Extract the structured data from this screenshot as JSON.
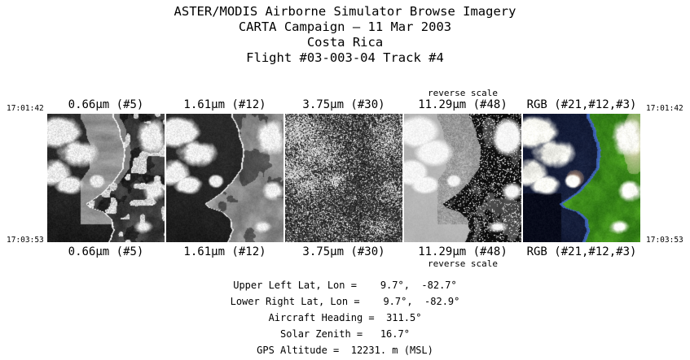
{
  "title": {
    "lines": [
      "ASTER/MODIS Airborne Simulator Browse Imagery",
      "CARTA Campaign — 11 Mar 2003",
      "Costa Rica",
      "Flight #03-003-04 Track #4"
    ]
  },
  "times": {
    "start": "17:01:42",
    "end": "17:03:53"
  },
  "panels": [
    {
      "label": "0.66μm (#5)",
      "band": "vis"
    },
    {
      "label": "1.61μm (#12)",
      "band": "swir"
    },
    {
      "label": "3.75μm (#30)",
      "band": "mwir"
    },
    {
      "label": "11.29μm (#48)",
      "band": "tir_reverse",
      "note": "reverse scale"
    },
    {
      "label": "RGB (#21,#12,#3)",
      "band": "rgb"
    }
  ],
  "metadata": {
    "lines": [
      "Upper Left Lat, Lon =    9.7°,  -82.7°",
      "Lower Right Lat, Lon =    9.7°,  -82.9°",
      "Aircraft Heading =  311.5°",
      "Solar Zenith =   16.7°",
      "GPS Altitude =  12231. m (MSL)"
    ]
  },
  "colors": {
    "background": "#ffffff",
    "text": "#000000",
    "rgb_ocean": "#101830",
    "rgb_land": "#2e7d14",
    "rgb_highlands": "#c8caa0",
    "cloud": "#f2f0ec"
  },
  "chart_data": {
    "type": "table",
    "title": "ASTER/MODIS Airborne Simulator Browse Imagery",
    "subtitle": "CARTA Campaign — 11 Mar 2003, Costa Rica, Flight #03-003-04 Track #4",
    "panels": [
      "0.66μm (#5)",
      "1.61μm (#12)",
      "3.75μm (#30)",
      "11.29μm (#48) reverse scale",
      "RGB (#21,#12,#3)"
    ],
    "time_range": [
      "17:01:42",
      "17:03:53"
    ],
    "values": {
      "upper_left_lat_lon_deg": [
        9.7,
        -82.7
      ],
      "lower_right_lat_lon_deg": [
        9.7,
        -82.9
      ],
      "aircraft_heading_deg": 311.5,
      "solar_zenith_deg": 16.7,
      "gps_altitude_m_msl": 12231
    }
  }
}
